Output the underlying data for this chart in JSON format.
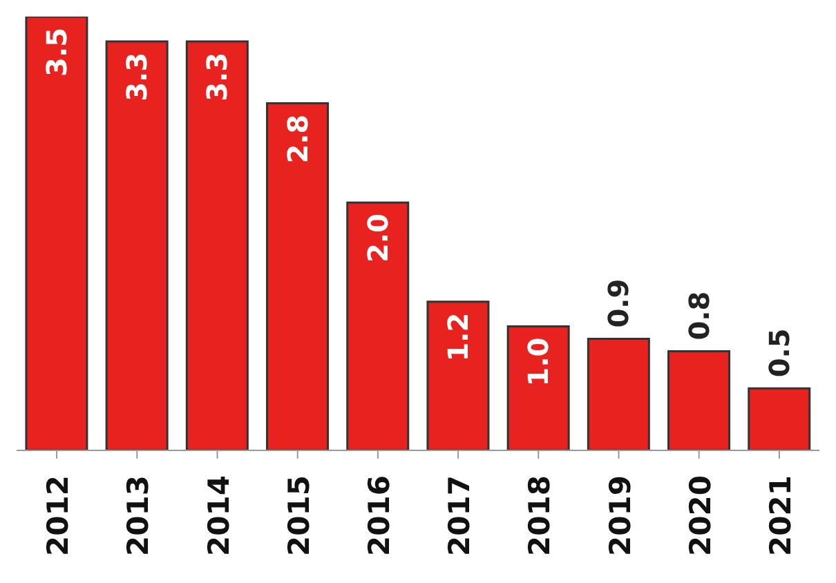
{
  "chart_data": {
    "type": "bar",
    "categories": [
      "2012",
      "2013",
      "2014",
      "2015",
      "2016",
      "2017",
      "2018",
      "2019",
      "2020",
      "2021"
    ],
    "values": [
      3.5,
      3.3,
      3.3,
      2.8,
      2.0,
      1.2,
      1.0,
      0.9,
      0.8,
      0.5
    ],
    "value_labels": [
      "3.5",
      "3.3",
      "3.3",
      "2.8",
      "2.0",
      "1.2",
      "1.0",
      "0.9",
      "0.8",
      "0.5"
    ],
    "color": "#e8221f"
  }
}
